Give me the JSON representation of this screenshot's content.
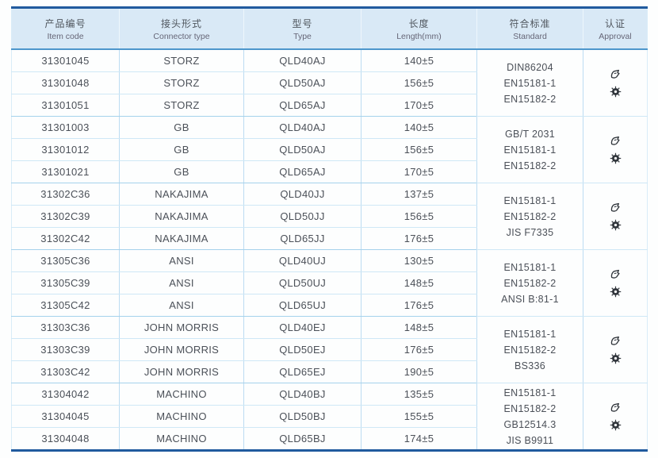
{
  "table": {
    "columns": [
      {
        "zh": "产品编号",
        "en": "Item code"
      },
      {
        "zh": "接头形式",
        "en": "Connector type"
      },
      {
        "zh": "型号",
        "en": "Type"
      },
      {
        "zh": "长度",
        "en": "Length(mm)"
      },
      {
        "zh": "符合标准",
        "en": "Standard"
      },
      {
        "zh": "认证",
        "en": "Approval"
      }
    ],
    "groups": [
      {
        "rows": [
          {
            "item_code": "31301045",
            "connector_type": "STORZ",
            "type": "QLD40AJ",
            "length": "140±5"
          },
          {
            "item_code": "31301048",
            "connector_type": "STORZ",
            "type": "QLD50AJ",
            "length": "156±5"
          },
          {
            "item_code": "31301051",
            "connector_type": "STORZ",
            "type": "QLD65AJ",
            "length": "170±5"
          }
        ],
        "standards": [
          "DIN86204",
          "EN15181-1",
          "EN15182-2"
        ],
        "approvals": [
          "type-approval-mark",
          "wheelmark"
        ]
      },
      {
        "rows": [
          {
            "item_code": "31301003",
            "connector_type": "GB",
            "type": "QLD40AJ",
            "length": "140±5"
          },
          {
            "item_code": "31301012",
            "connector_type": "GB",
            "type": "QLD50AJ",
            "length": "156±5"
          },
          {
            "item_code": "31301021",
            "connector_type": "GB",
            "type": "QLD65AJ",
            "length": "170±5"
          }
        ],
        "standards": [
          "GB/T 2031",
          "EN15181-1",
          "EN15182-2"
        ],
        "approvals": [
          "type-approval-mark",
          "wheelmark"
        ]
      },
      {
        "rows": [
          {
            "item_code": "31302C36",
            "connector_type": "NAKAJIMA",
            "type": "QLD40JJ",
            "length": "137±5"
          },
          {
            "item_code": "31302C39",
            "connector_type": "NAKAJIMA",
            "type": "QLD50JJ",
            "length": "156±5"
          },
          {
            "item_code": "31302C42",
            "connector_type": "NAKAJIMA",
            "type": "QLD65JJ",
            "length": "176±5"
          }
        ],
        "standards": [
          "EN15181-1",
          "EN15182-2",
          "JIS F7335"
        ],
        "approvals": [
          "type-approval-mark",
          "wheelmark"
        ]
      },
      {
        "rows": [
          {
            "item_code": "31305C36",
            "connector_type": "ANSI",
            "type": "QLD40UJ",
            "length": "130±5"
          },
          {
            "item_code": "31305C39",
            "connector_type": "ANSI",
            "type": "QLD50UJ",
            "length": "148±5"
          },
          {
            "item_code": "31305C42",
            "connector_type": "ANSI",
            "type": "QLD65UJ",
            "length": "176±5"
          }
        ],
        "standards": [
          "EN15181-1",
          "EN15182-2",
          "ANSI B:81-1"
        ],
        "approvals": [
          "type-approval-mark",
          "wheelmark"
        ]
      },
      {
        "rows": [
          {
            "item_code": "31303C36",
            "connector_type": "JOHN MORRIS",
            "type": "QLD40EJ",
            "length": "148±5"
          },
          {
            "item_code": "31303C39",
            "connector_type": "JOHN MORRIS",
            "type": "QLD50EJ",
            "length": "176±5"
          },
          {
            "item_code": "31303C42",
            "connector_type": "JOHN MORRIS",
            "type": "QLD65EJ",
            "length": "190±5"
          }
        ],
        "standards": [
          "EN15181-1",
          "EN15182-2",
          "BS336"
        ],
        "approvals": [
          "type-approval-mark",
          "wheelmark"
        ]
      },
      {
        "rows": [
          {
            "item_code": "31304042",
            "connector_type": "MACHINO",
            "type": "QLD40BJ",
            "length": "135±5"
          },
          {
            "item_code": "31304045",
            "connector_type": "MACHINO",
            "type": "QLD50BJ",
            "length": "155±5"
          },
          {
            "item_code": "31304048",
            "connector_type": "MACHINO",
            "type": "QLD65BJ",
            "length": "174±5"
          }
        ],
        "standards": [
          "EN15181-1",
          "EN15182-2",
          "GB12514.3",
          "JIS B9911"
        ],
        "approvals": [
          "type-approval-mark",
          "wheelmark"
        ]
      }
    ]
  },
  "icons": {
    "type_approval_mark": "type-approval-mark-icon",
    "wheelmark": "wheelmark-icon"
  },
  "colors": {
    "accent_dark_blue": "#205a9e",
    "header_bg": "#d9e9f6",
    "header_rule_blue": "#4e97cc",
    "grid_light_blue": "#bcdcf2",
    "row_rule_blue": "#cfe8f6",
    "group_rule_blue": "#a5d2ec",
    "text": "#4b5058",
    "icon_dark": "#32373d"
  }
}
